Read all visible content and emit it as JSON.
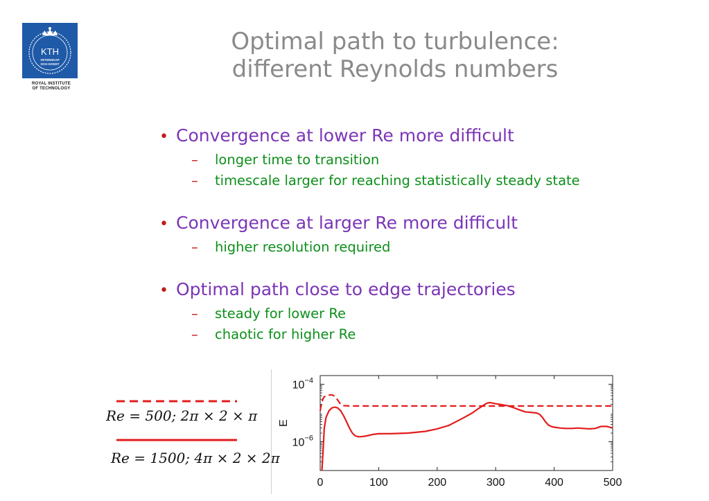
{
  "logo": {
    "name": "KTH",
    "text_lines": [
      "ROYAL INSTITUTE",
      "OF TECHNOLOGY"
    ],
    "emblem_text": [
      "KTH",
      "VETENSKAP",
      "OCH KONST"
    ],
    "color": "#1f5aa8"
  },
  "title": {
    "line1": "Optimal path to turbulence:",
    "line2": "different Reynolds numbers"
  },
  "bullets": [
    {
      "text": "Convergence at lower Re more difficult",
      "subs": [
        "longer time to transition",
        "timescale larger for reaching statistically steady state"
      ]
    },
    {
      "text": "Convergence at larger Re more difficult",
      "subs": [
        "higher resolution required"
      ]
    },
    {
      "text": "Optimal path close to edge trajectories",
      "subs": [
        "steady for lower Re",
        "chaotic for higher Re"
      ]
    }
  ],
  "symbols": {
    "bullet": "•",
    "dash": "–"
  },
  "colors": {
    "title": "#8a8a8a",
    "main": "#7b35b6",
    "sub": "#0d8f1a",
    "marker": "#c41a1a",
    "series": "#e31c1c"
  },
  "legend": [
    {
      "label": "Re = 500; 2π × 2 × π",
      "style": "dashed"
    },
    {
      "label": "Re = 1500; 4π × 2 × 2π",
      "style": "solid"
    }
  ],
  "chart_data": {
    "type": "line",
    "xlabel": "",
    "ylabel": "E",
    "xlim": [
      0,
      500
    ],
    "ylim": [
      1e-07,
      0.0002
    ],
    "yscale": "log",
    "xticks": [
      0,
      100,
      200,
      300,
      400,
      500
    ],
    "xtick_labels": [
      "0",
      "100",
      "200",
      "300",
      "400",
      "500"
    ],
    "yticks": [
      1e-06,
      0.0001
    ],
    "ytick_labels": [
      {
        "base": "10",
        "exp": "−6"
      },
      {
        "base": "10",
        "exp": "−4"
      }
    ],
    "grid": false,
    "series": [
      {
        "name": "Re = 500; 2π × 2 × π",
        "style": "dashed",
        "x": [
          0,
          3,
          6,
          10,
          15,
          20,
          25,
          30,
          35,
          40,
          50,
          60,
          80,
          100,
          150,
          200,
          250,
          300,
          350,
          400,
          450,
          500
        ],
        "y": [
          1.2e-05,
          2.5e-05,
          3.5e-05,
          4e-05,
          4.2e-05,
          4.3e-05,
          3.8e-05,
          2.8e-05,
          2e-05,
          1.8e-05,
          1.75e-05,
          1.75e-05,
          1.75e-05,
          1.75e-05,
          1.75e-05,
          1.75e-05,
          1.75e-05,
          1.75e-05,
          1.75e-05,
          1.75e-05,
          1.75e-05,
          1.75e-05
        ]
      },
      {
        "name": "Re = 1500; 4π × 2 × 2π",
        "style": "solid",
        "x": [
          3,
          5,
          7,
          10,
          15,
          20,
          25,
          30,
          35,
          40,
          45,
          50,
          55,
          60,
          65,
          70,
          80,
          90,
          100,
          120,
          150,
          180,
          200,
          220,
          240,
          260,
          270,
          280,
          285,
          290,
          295,
          300,
          310,
          320,
          330,
          340,
          350,
          360,
          370,
          375,
          380,
          385,
          390,
          395,
          400,
          410,
          420,
          430,
          440,
          450,
          460,
          470,
          480,
          490,
          500
        ],
        "y": [
          1e-07,
          5e-07,
          3e-06,
          7e-06,
          1.2e-05,
          1.5e-05,
          1.6e-05,
          1.5e-05,
          1.2e-05,
          8e-06,
          5e-06,
          3e-06,
          2e-06,
          1.6e-06,
          1.5e-06,
          1.5e-06,
          1.6e-06,
          1.8e-06,
          1.9e-06,
          1.9e-06,
          2e-06,
          2.3e-06,
          2.8e-06,
          3.7e-06,
          6e-06,
          1e-05,
          1.4e-05,
          1.9e-05,
          2.2e-05,
          2.3e-05,
          2.2e-05,
          2.1e-05,
          1.95e-05,
          1.8e-05,
          1.55e-05,
          1.3e-05,
          1.1e-05,
          1.05e-05,
          1e-05,
          9e-06,
          7e-06,
          5e-06,
          3.8e-06,
          3.4e-06,
          3.2e-06,
          3e-06,
          2.9e-06,
          2.9e-06,
          3e-06,
          2.9e-06,
          2.8e-06,
          2.9e-06,
          3.4e-06,
          3.4e-06,
          3e-06
        ]
      }
    ]
  }
}
